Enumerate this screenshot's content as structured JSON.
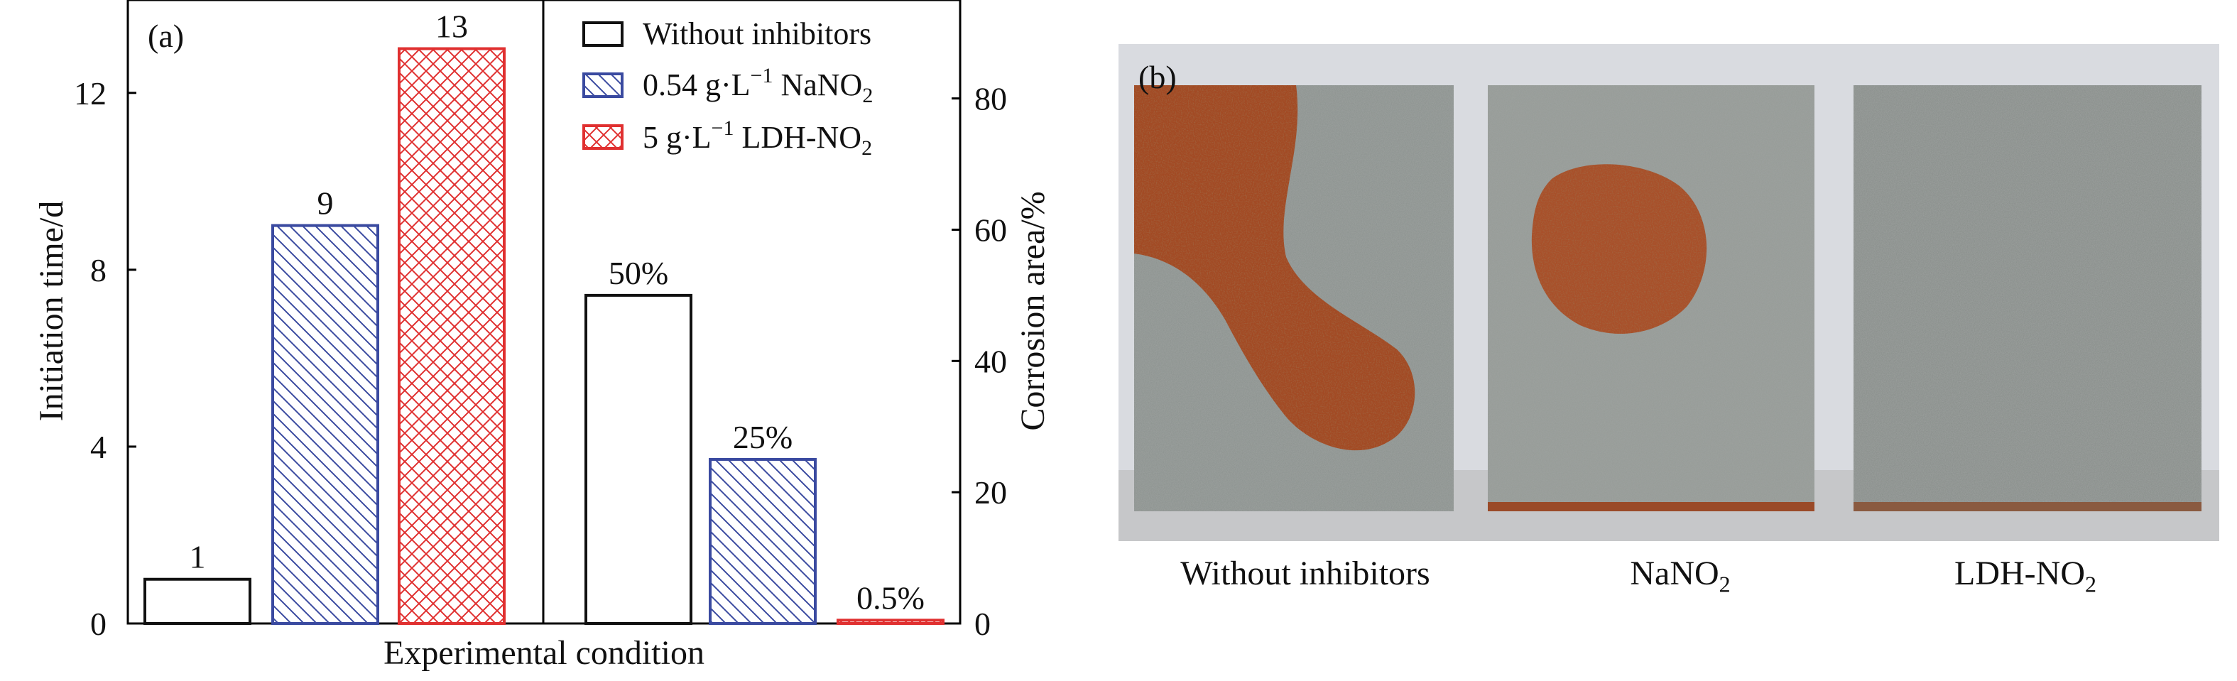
{
  "panel_a": {
    "label": "(a)",
    "legend": [
      {
        "label": "Without inhibitors",
        "pattern": "none",
        "color": "#111111"
      },
      {
        "label_pre": "0.54 g·L",
        "label_sup": "−1",
        "label_post": " NaNO",
        "label_sub": "2",
        "pattern": "diag",
        "color": "#3a4aa0"
      },
      {
        "label_pre": "5 g·L",
        "label_sup": "−1",
        "label_post": " LDH-NO",
        "label_sub": "2",
        "pattern": "cross",
        "color": "#e03030"
      }
    ]
  },
  "panel_b": {
    "label": "(b)",
    "captions": [
      {
        "text": "Without inhibitors",
        "sub": ""
      },
      {
        "text": "NaNO",
        "sub": "2"
      },
      {
        "text": "LDH-NO",
        "sub": "2"
      }
    ]
  },
  "chart_data": {
    "type": "bar",
    "xlabel": "Experimental condition",
    "ylabel": "Initiation time/d",
    "y2label": "Corrosion area/%",
    "ylim": [
      0,
      15
    ],
    "yticks": [
      0,
      4,
      8,
      12
    ],
    "y2lim": [
      0,
      95
    ],
    "y2ticks": [
      0,
      20,
      40,
      60,
      80
    ],
    "groups": [
      {
        "axis": "left",
        "bars": [
          {
            "series": 0,
            "value": 1,
            "label": "1"
          },
          {
            "series": 1,
            "value": 9,
            "label": "9"
          },
          {
            "series": 2,
            "value": 13,
            "label": "13"
          }
        ]
      },
      {
        "axis": "right",
        "bars": [
          {
            "series": 0,
            "value": 50,
            "label": "50%"
          },
          {
            "series": 1,
            "value": 25,
            "label": "25%"
          },
          {
            "series": 2,
            "value": 0.5,
            "label": "0.5%"
          }
        ]
      }
    ]
  }
}
